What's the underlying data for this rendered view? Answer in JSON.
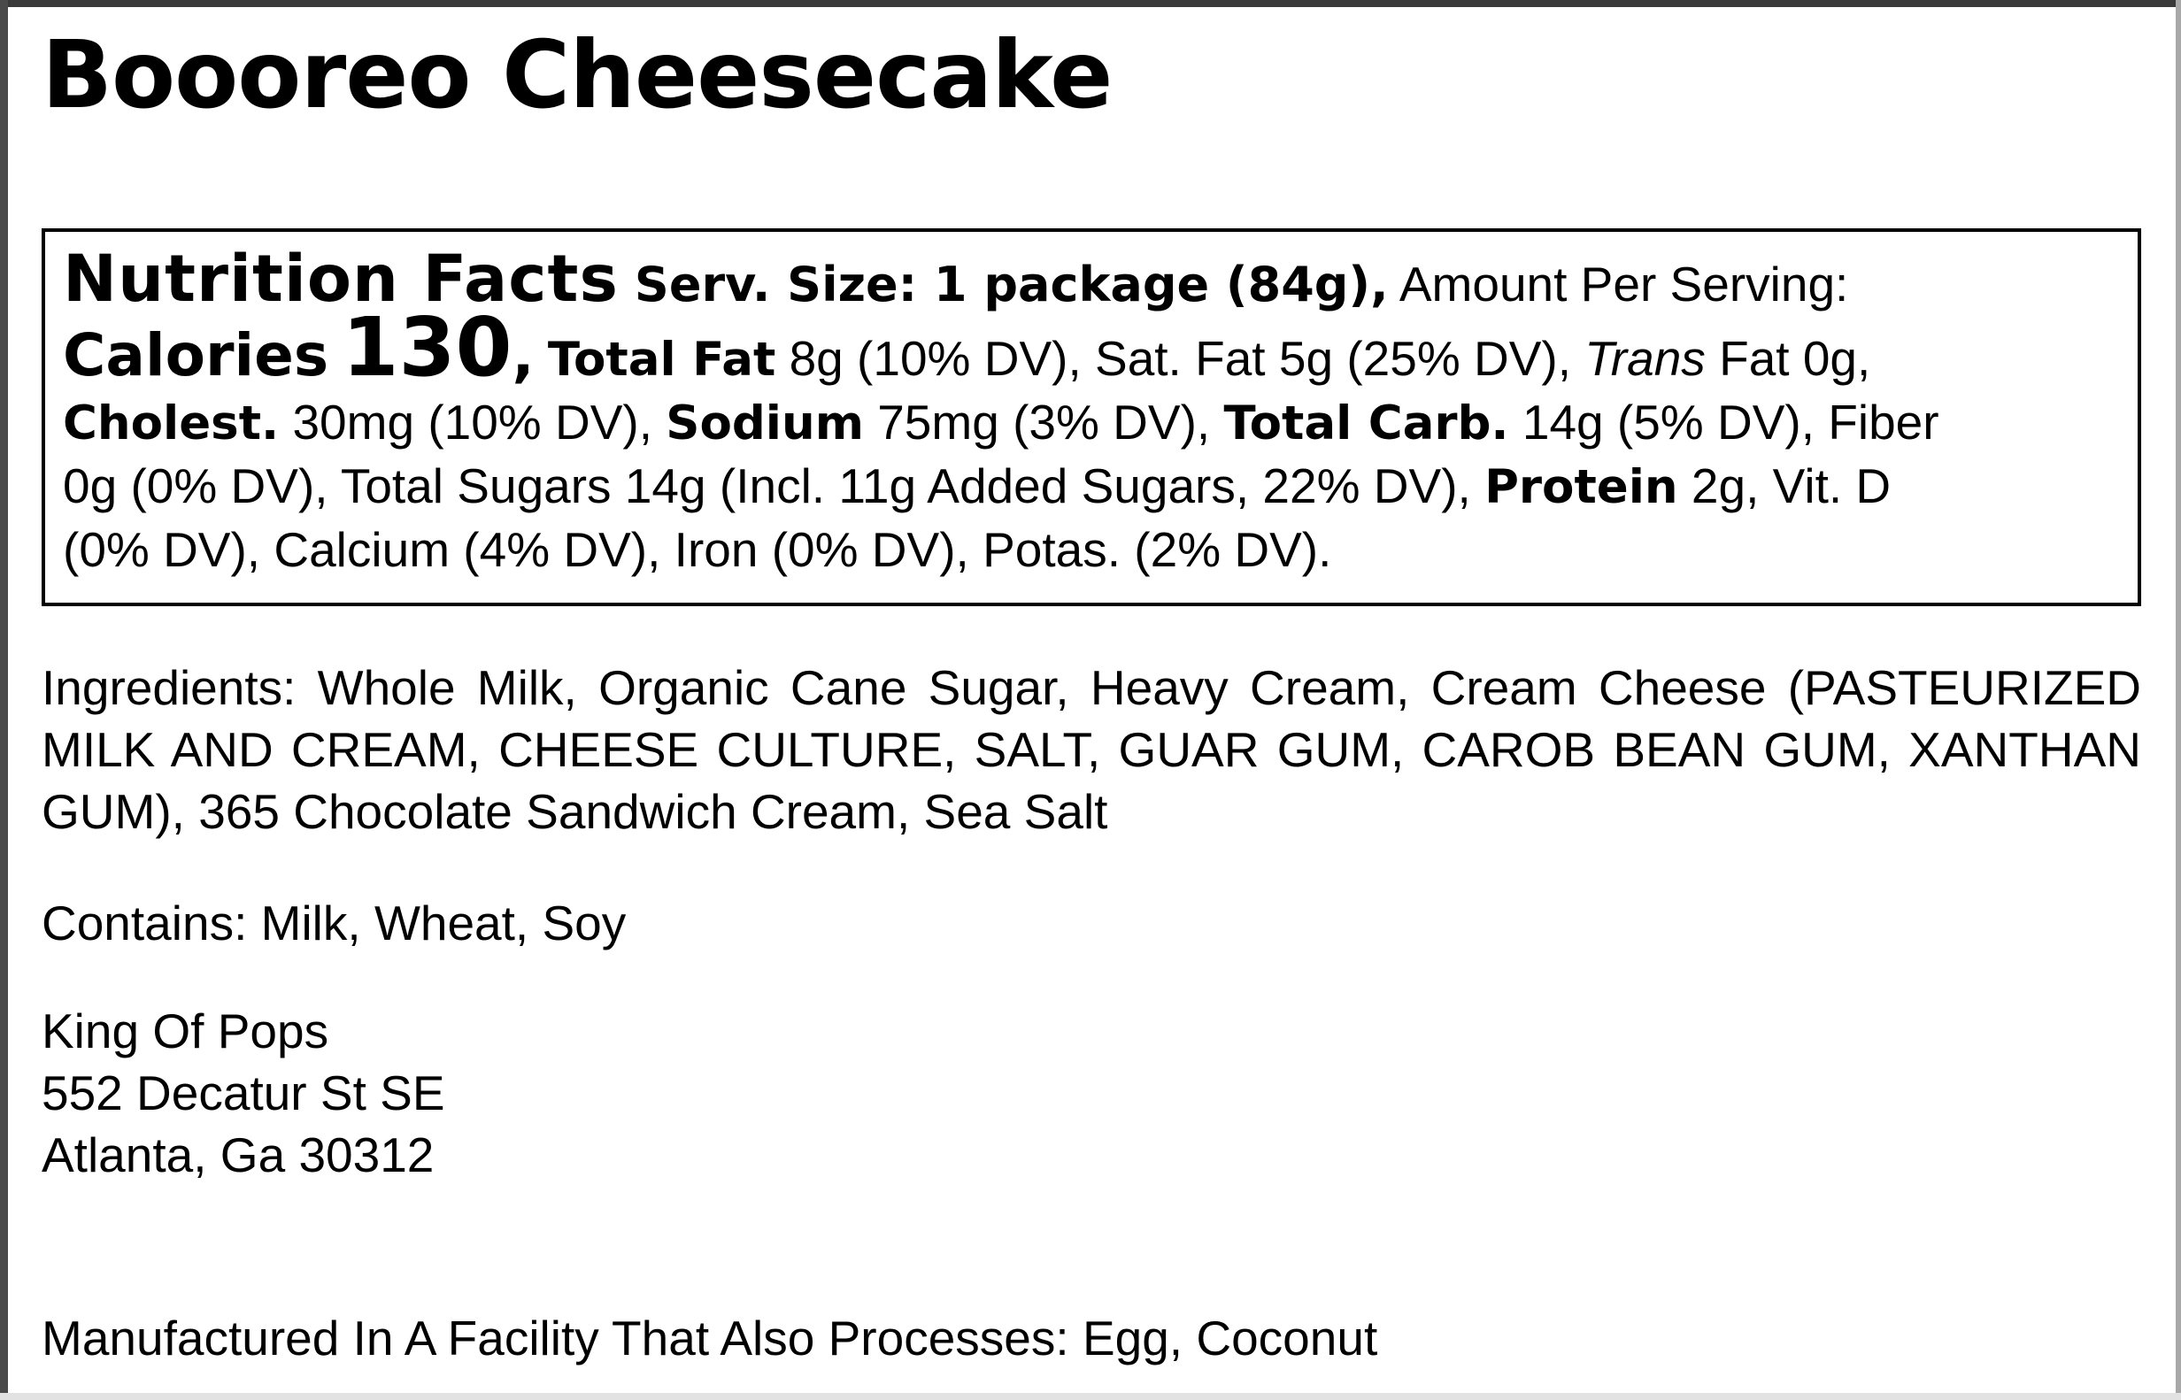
{
  "product": {
    "title": "Boooreo Cheesecake"
  },
  "nutrition": {
    "heading": "Nutrition Facts",
    "serving_label": "Serv. Size: 1 package (84g),",
    "amount_per_serving": " Amount Per Serving:",
    "calories_label": "Calories",
    "calories_value": "130",
    "comma": ",",
    "total_fat_label": "Total Fat",
    "total_fat_value": " 8g (10% DV), Sat. Fat 5g (25% DV), ",
    "trans_label": "Trans",
    "trans_value": " Fat 0g,",
    "cholest_label": "Cholest.",
    "cholest_value": " 30mg (10% DV), ",
    "sodium_label": "Sodium",
    "sodium_value": " 75mg (3% DV), ",
    "total_carb_label": "Total Carb.",
    "total_carb_value": " 14g (5% DV), Fiber",
    "line4_text": "0g (0% DV), Total Sugars 14g (Incl. 11g Added Sugars, 22% DV), ",
    "protein_label": "Protein",
    "protein_value": " 2g, Vit. D",
    "line5_text": "(0% DV), Calcium (4% DV), Iron (0% DV), Potas. (2% DV)."
  },
  "ingredients": {
    "text": "Ingredients: Whole Milk, Organic Cane Sugar, Heavy Cream, Cream Cheese (PASTEURIZED MILK AND CREAM, CHEESE CULTURE, SALT, GUAR GUM, CAROB BEAN GUM, XANTHAN GUM), 365 Chocolate Sandwich Cream, Sea Salt"
  },
  "allergens": {
    "contains": "Contains: Milk, Wheat, Soy"
  },
  "manufacturer": {
    "name": "King Of Pops",
    "street": "552 Decatur St SE",
    "city": "Atlanta, Ga 30312"
  },
  "facility_note": "Manufactured In A Facility That Also Processes: Egg, Coconut"
}
